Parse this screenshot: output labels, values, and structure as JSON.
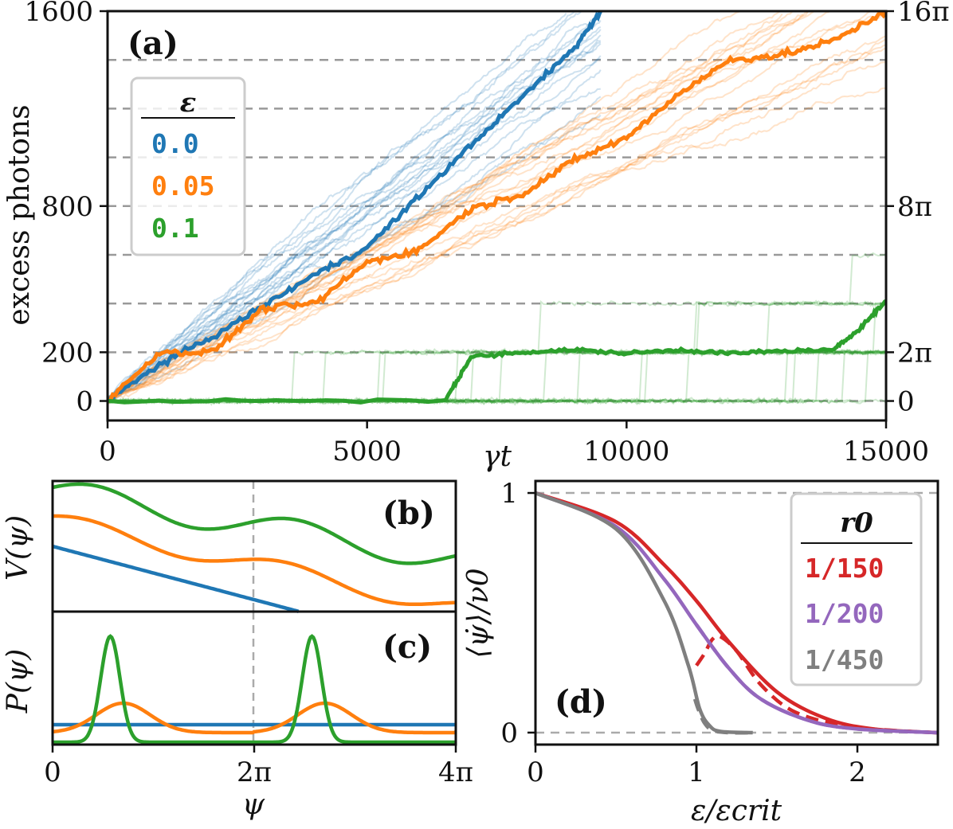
{
  "colors": {
    "blue": "#1f77b4",
    "orange": "#ff7f0e",
    "green": "#2ca02c",
    "red": "#d62728",
    "purple": "#9467bd",
    "gray": "#7f7f7f"
  },
  "chart_data": [
    {
      "id": "a",
      "type": "line",
      "panel_label": "(a)",
      "xlabel": "γt",
      "ylabel": "excess photons",
      "xlim": [
        0,
        15000
      ],
      "ylim": [
        -80,
        1600
      ],
      "xticks": [
        0,
        5000,
        10000,
        15000
      ],
      "xtick_labels": [
        "0",
        "5000",
        "10000",
        "15000"
      ],
      "yticks": [
        0,
        200,
        800,
        1600
      ],
      "ytick_labels": [
        "0",
        "200",
        "800",
        "1600"
      ],
      "right_ticks": [
        0,
        200,
        800,
        1600
      ],
      "right_tick_labels": [
        "0",
        "2π",
        "8π",
        "16π"
      ],
      "dashed_levels": [
        0,
        200,
        400,
        600,
        800,
        1000,
        1200,
        1400
      ],
      "legend": {
        "title": "ε",
        "entries": [
          "0.0",
          "0.05",
          "0.1"
        ]
      },
      "series": [
        {
          "name": "0.0",
          "color": "blue",
          "mean_slope": 0.16,
          "spread": 0.025,
          "noise": 12,
          "end_x": 9500
        },
        {
          "name": "0.05",
          "color": "orange",
          "mean_slope": 0.115,
          "spread": 0.02,
          "noise": 14,
          "end_x": 15000
        },
        {
          "name": "0.1",
          "color": "green",
          "levels": [
            0,
            200,
            400,
            600
          ],
          "noise": 8,
          "end_x": 15000
        }
      ],
      "highlight": {
        "0.0": [
          [
            0,
            0
          ],
          [
            1000,
            150
          ],
          [
            2000,
            260
          ],
          [
            3000,
            390
          ],
          [
            4000,
            520
          ],
          [
            5000,
            630
          ],
          [
            6000,
            840
          ],
          [
            7000,
            1050
          ],
          [
            8000,
            1250
          ],
          [
            9000,
            1450
          ],
          [
            9500,
            1600
          ]
        ],
        "0.05": [
          [
            0,
            0
          ],
          [
            1000,
            200
          ],
          [
            2000,
            200
          ],
          [
            3000,
            380
          ],
          [
            4000,
            400
          ],
          [
            5000,
            570
          ],
          [
            6000,
            620
          ],
          [
            7000,
            790
          ],
          [
            8000,
            850
          ],
          [
            9000,
            990
          ],
          [
            10000,
            1080
          ],
          [
            11000,
            1260
          ],
          [
            12000,
            1400
          ],
          [
            13000,
            1420
          ],
          [
            14000,
            1480
          ],
          [
            15000,
            1600
          ]
        ],
        "0.1": [
          [
            0,
            0
          ],
          [
            6500,
            0
          ],
          [
            7000,
            180
          ],
          [
            8000,
            200
          ],
          [
            9000,
            210
          ],
          [
            10000,
            195
          ],
          [
            11000,
            210
          ],
          [
            12000,
            195
          ],
          [
            13000,
            205
          ],
          [
            14000,
            210
          ],
          [
            14500,
            300
          ],
          [
            15000,
            410
          ]
        ]
      }
    },
    {
      "id": "b",
      "type": "line",
      "panel_label": "(b)",
      "ylabel": "V(ψ)",
      "xlim_pi": [
        0,
        4
      ],
      "series": [
        {
          "name": "0.0",
          "color": "blue"
        },
        {
          "name": "0.05",
          "color": "orange"
        },
        {
          "name": "0.1",
          "color": "green"
        }
      ]
    },
    {
      "id": "c",
      "type": "line",
      "panel_label": "(c)",
      "xlabel": "ψ",
      "ylabel": "P(ψ)",
      "xlim_pi": [
        0,
        4
      ],
      "xtick_labels": [
        "0",
        "2π",
        "4π"
      ],
      "series": [
        {
          "name": "0.0",
          "color": "blue"
        },
        {
          "name": "0.05",
          "color": "orange"
        },
        {
          "name": "0.1",
          "color": "green"
        }
      ]
    },
    {
      "id": "d",
      "type": "line",
      "panel_label": "(d)",
      "xlabel": "ε/εcrit",
      "ylabel": "⟨ψ̇⟩/ν0",
      "xlim": [
        0,
        2.5
      ],
      "ylim": [
        -0.05,
        1.05
      ],
      "xticks": [
        0,
        1,
        2
      ],
      "xtick_labels": [
        "0",
        "1",
        "2"
      ],
      "yticks": [
        0,
        1
      ],
      "ytick_labels": [
        "0",
        "1"
      ],
      "legend": {
        "title": "r0",
        "entries": [
          "1/150",
          "1/200",
          "1/450"
        ]
      },
      "series": [
        {
          "name": "1/150",
          "color": "red",
          "theory": [
            [
              0,
              1
            ],
            [
              0.5,
              0.88
            ],
            [
              0.8,
              0.7
            ],
            [
              1,
              0.55
            ],
            [
              1.2,
              0.38
            ],
            [
              1.5,
              0.17
            ],
            [
              1.8,
              0.06
            ],
            [
              2.1,
              0.015
            ],
            [
              2.5,
              0
            ]
          ],
          "sim": [
            [
              1.0,
              0.28
            ],
            [
              1.05,
              0.33
            ],
            [
              1.1,
              0.39
            ],
            [
              1.15,
              0.4
            ],
            [
              1.25,
              0.34
            ],
            [
              1.4,
              0.2
            ],
            [
              1.6,
              0.09
            ],
            [
              1.9,
              0.03
            ],
            [
              2.2,
              0.01
            ],
            [
              2.5,
              0
            ]
          ]
        },
        {
          "name": "1/200",
          "color": "purple",
          "theory": [
            [
              0,
              1
            ],
            [
              0.5,
              0.86
            ],
            [
              0.8,
              0.64
            ],
            [
              1,
              0.45
            ],
            [
              1.2,
              0.27
            ],
            [
              1.4,
              0.14
            ],
            [
              1.7,
              0.05
            ],
            [
              2.0,
              0.015
            ],
            [
              2.5,
              0
            ]
          ],
          "sim": [
            [
              1.0,
              0.45
            ],
            [
              1.2,
              0.27
            ],
            [
              1.4,
              0.14
            ],
            [
              1.7,
              0.05
            ],
            [
              2.0,
              0.015
            ],
            [
              2.5,
              0
            ]
          ]
        },
        {
          "name": "1/450",
          "color": "gray",
          "theory": [
            [
              0,
              1
            ],
            [
              0.5,
              0.85
            ],
            [
              0.8,
              0.55
            ],
            [
              0.95,
              0.28
            ],
            [
              1.02,
              0.1
            ],
            [
              1.08,
              0.03
            ],
            [
              1.15,
              0.005
            ],
            [
              1.35,
              0
            ]
          ],
          "sim": [
            [
              0.99,
              0.14
            ],
            [
              1.01,
              0.1
            ],
            [
              1.05,
              0.04
            ],
            [
              1.1,
              0.01
            ],
            [
              1.2,
              0
            ],
            [
              1.35,
              0
            ]
          ]
        }
      ]
    }
  ]
}
